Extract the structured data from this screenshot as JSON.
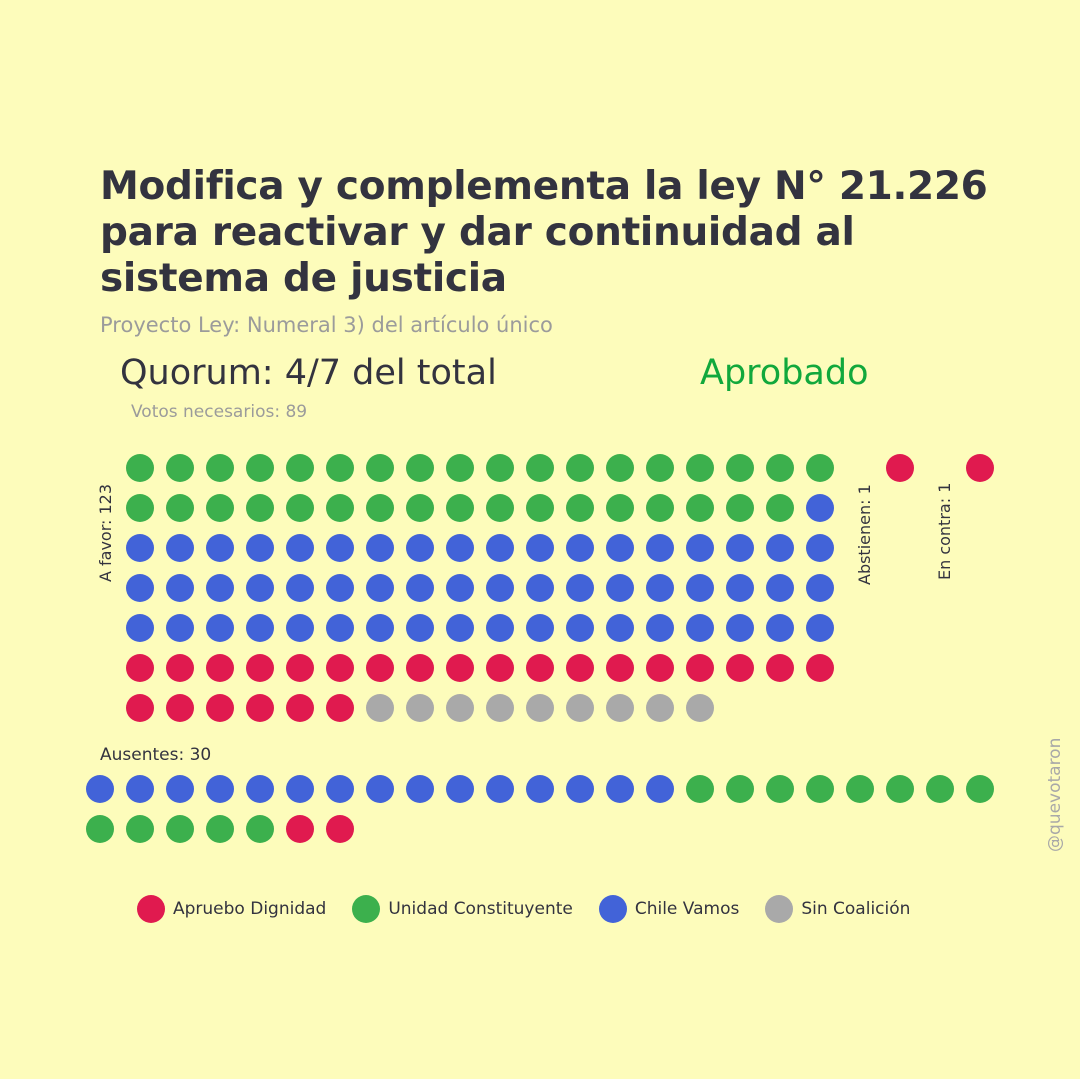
{
  "title": "Modifica y complementa la ley N° 21.226 para reactivar y dar continuidad al sistema de justicia",
  "subtitle": "Proyecto Ley: Numeral 3) del artículo único",
  "quorum": "Quorum: 4/7 del total",
  "status": "Aprobado",
  "votes_needed": "Votos necesarios: 89",
  "watermark": "@quevotaron",
  "labels": {
    "favor": "A favor: 123",
    "abstain": "Abstienen: 1",
    "against": "En contra: 1",
    "absent": "Ausentes: 30"
  },
  "colors": {
    "Apruebo Dignidad": "#e01a4f",
    "Unidad Constituyente": "#3cb04d",
    "Chile Vamos": "#4263d8",
    "Sin Coalición": "#a9a9a9"
  },
  "legend": [
    {
      "name": "Apruebo Dignidad",
      "color": "#e01a4f"
    },
    {
      "name": "Unidad Constituyente",
      "color": "#3cb04d"
    },
    {
      "name": "Chile Vamos",
      "color": "#4263d8"
    },
    {
      "name": "Sin Coalición",
      "color": "#a9a9a9"
    }
  ],
  "chart_data": {
    "type": "waffle",
    "groups": [
      {
        "name": "A favor",
        "total": 123,
        "counts": {
          "Unidad Constituyente": 35,
          "Chile Vamos": 55,
          "Apruebo Dignidad": 24,
          "Sin Coalición": 9
        }
      },
      {
        "name": "Abstienen",
        "total": 1,
        "counts": {
          "Apruebo Dignidad": 1
        }
      },
      {
        "name": "En contra",
        "total": 1,
        "counts": {
          "Apruebo Dignidad": 1
        }
      },
      {
        "name": "Ausentes",
        "total": 30,
        "counts": {
          "Chile Vamos": 15,
          "Unidad Constituyente": 13,
          "Apruebo Dignidad": 2
        }
      }
    ]
  }
}
